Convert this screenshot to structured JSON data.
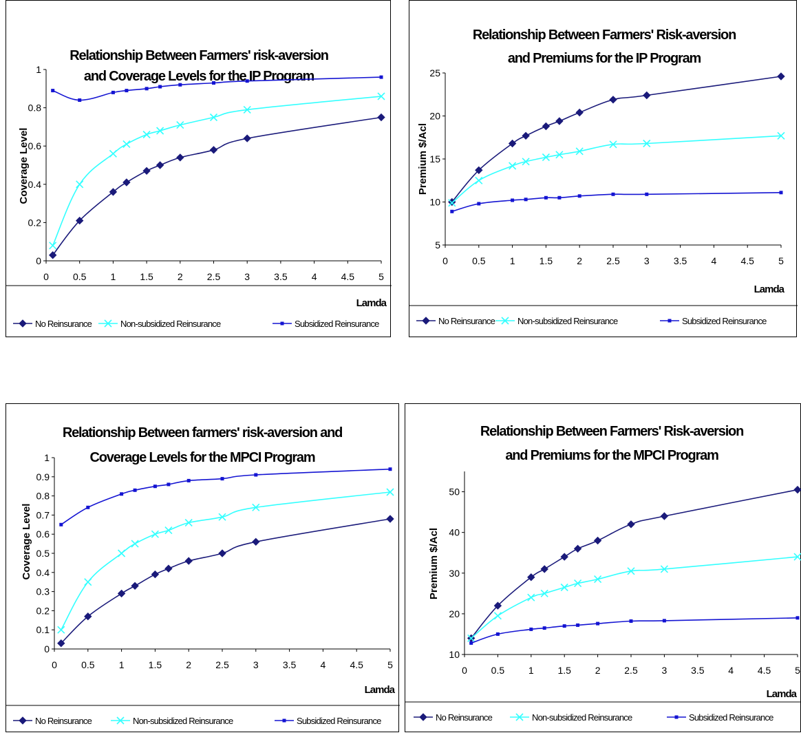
{
  "colors": {
    "no_reinsurance": "#1a1a7a",
    "non_subsidized": "#33ffff",
    "subsidized": "#1414d2"
  },
  "chart_data": [
    {
      "type": "line",
      "title": [
        "Relationship Between Farmers' risk-aversion",
        "and Coverage Levels  for the IP Program"
      ],
      "xlabel": "Lamda",
      "ylabel": "Coverage Level",
      "xlim": [
        0,
        5
      ],
      "ylim": [
        0,
        1
      ],
      "xticks": [
        "0",
        "0.5",
        "1",
        "1.5",
        "2",
        "2.5",
        "3",
        "3.5",
        "4",
        "4.5",
        "5"
      ],
      "yticks": [
        "0",
        "0.2",
        "0.4",
        "0.6",
        "0.8",
        "1"
      ],
      "x": [
        0.1,
        0.5,
        1,
        1.2,
        1.5,
        1.7,
        2,
        2.5,
        3,
        5
      ],
      "legend": "bottom",
      "series": [
        {
          "name": "No Reinsurance",
          "marker": "diamond",
          "values": [
            0.03,
            0.21,
            0.36,
            0.41,
            0.47,
            0.5,
            0.54,
            0.58,
            0.64,
            0.75
          ]
        },
        {
          "name": "Non-subsidized Reinsurance",
          "marker": "x",
          "values": [
            0.08,
            0.4,
            0.56,
            0.61,
            0.66,
            0.68,
            0.71,
            0.75,
            0.79,
            0.86
          ]
        },
        {
          "name": "Subsidized Reinsurance",
          "marker": "square",
          "values": [
            0.89,
            0.84,
            0.88,
            0.89,
            0.9,
            0.91,
            0.92,
            0.93,
            0.94,
            0.96
          ]
        }
      ]
    },
    {
      "type": "line",
      "title": [
        "Relationship Between Farmers' Risk-aversion",
        "and Premiums for the IP Program"
      ],
      "xlabel": "Lamda",
      "ylabel": "Premium $/Acl",
      "xlim": [
        0,
        5
      ],
      "ylim": [
        5,
        25
      ],
      "xticks": [
        "0",
        "0.5",
        "1",
        "1.5",
        "2",
        "2.5",
        "3",
        "3.5",
        "4",
        "4.5",
        "5"
      ],
      "yticks": [
        "5",
        "10",
        "15",
        "20",
        "25"
      ],
      "x": [
        0.1,
        0.5,
        1,
        1.2,
        1.5,
        1.7,
        2,
        2.5,
        3,
        5
      ],
      "legend": "bottom",
      "series": [
        {
          "name": "No Reinsurance",
          "marker": "diamond",
          "values": [
            10,
            13.7,
            16.8,
            17.7,
            18.8,
            19.4,
            20.4,
            21.9,
            22.4,
            24.6
          ]
        },
        {
          "name": "Non-subsidized Reinsurance",
          "marker": "x",
          "values": [
            9.9,
            12.5,
            14.2,
            14.7,
            15.2,
            15.5,
            15.9,
            16.7,
            16.8,
            17.7
          ]
        },
        {
          "name": "Subsidized Reinsurance",
          "marker": "square",
          "values": [
            8.9,
            9.8,
            10.2,
            10.3,
            10.5,
            10.5,
            10.7,
            10.9,
            10.9,
            11.1
          ]
        }
      ]
    },
    {
      "type": "line",
      "title": [
        "Relationship Between farmers' risk-aversion and",
        "Coverage Levels for the MPCI Program"
      ],
      "xlabel": "Lamda",
      "ylabel": "Coverage Level",
      "xlim": [
        0,
        5
      ],
      "ylim": [
        0,
        1
      ],
      "xticks": [
        "0",
        "0.5",
        "1",
        "1.5",
        "2",
        "2.5",
        "3",
        "3.5",
        "4",
        "4.5",
        "5"
      ],
      "yticks": [
        "0",
        "0.1",
        "0.2",
        "0.3",
        "0.4",
        "0.5",
        "0.6",
        "0.7",
        "0.8",
        "0.9",
        "1"
      ],
      "x": [
        0.1,
        0.5,
        1,
        1.2,
        1.5,
        1.7,
        2,
        2.5,
        3,
        5
      ],
      "legend": "bottom",
      "series": [
        {
          "name": "No Reinsurance",
          "marker": "diamond",
          "values": [
            0.03,
            0.17,
            0.29,
            0.33,
            0.39,
            0.42,
            0.46,
            0.5,
            0.56,
            0.68
          ]
        },
        {
          "name": "Non-subsidized Reinsurance",
          "marker": "x",
          "values": [
            0.1,
            0.35,
            0.5,
            0.55,
            0.6,
            0.62,
            0.66,
            0.69,
            0.74,
            0.82
          ]
        },
        {
          "name": "Subsidized Reinsurance",
          "marker": "square",
          "values": [
            0.65,
            0.74,
            0.81,
            0.83,
            0.85,
            0.86,
            0.88,
            0.89,
            0.91,
            0.94
          ]
        }
      ]
    },
    {
      "type": "line",
      "title": [
        "Relationship Between Farmers' Risk-aversion",
        "and Premiums for the MPCI Program"
      ],
      "xlabel": "Lamda",
      "ylabel": "Premium $/Acl",
      "xlim": [
        0,
        5
      ],
      "ylim": [
        10,
        55
      ],
      "xticks": [
        "0",
        "0.5",
        "1",
        "1.5",
        "2",
        "2.5",
        "3",
        "3.5",
        "4",
        "4.5",
        "5"
      ],
      "yticks": [
        "10",
        "20",
        "30",
        "40",
        "50"
      ],
      "x": [
        0.1,
        0.5,
        1,
        1.2,
        1.5,
        1.7,
        2,
        2.5,
        3,
        5
      ],
      "legend": "bottom",
      "series": [
        {
          "name": "No Reinsurance",
          "marker": "diamond",
          "values": [
            14,
            22,
            29,
            31,
            34,
            36,
            38,
            42,
            44,
            50.5
          ]
        },
        {
          "name": "Non-subsidized Reinsurance",
          "marker": "x",
          "values": [
            14,
            19.5,
            24,
            25,
            26.5,
            27.5,
            28.5,
            30.5,
            31,
            34
          ]
        },
        {
          "name": "Subsidized Reinsurance",
          "marker": "square",
          "values": [
            12.8,
            15,
            16.2,
            16.5,
            17,
            17.2,
            17.6,
            18.2,
            18.3,
            19
          ]
        }
      ]
    }
  ]
}
